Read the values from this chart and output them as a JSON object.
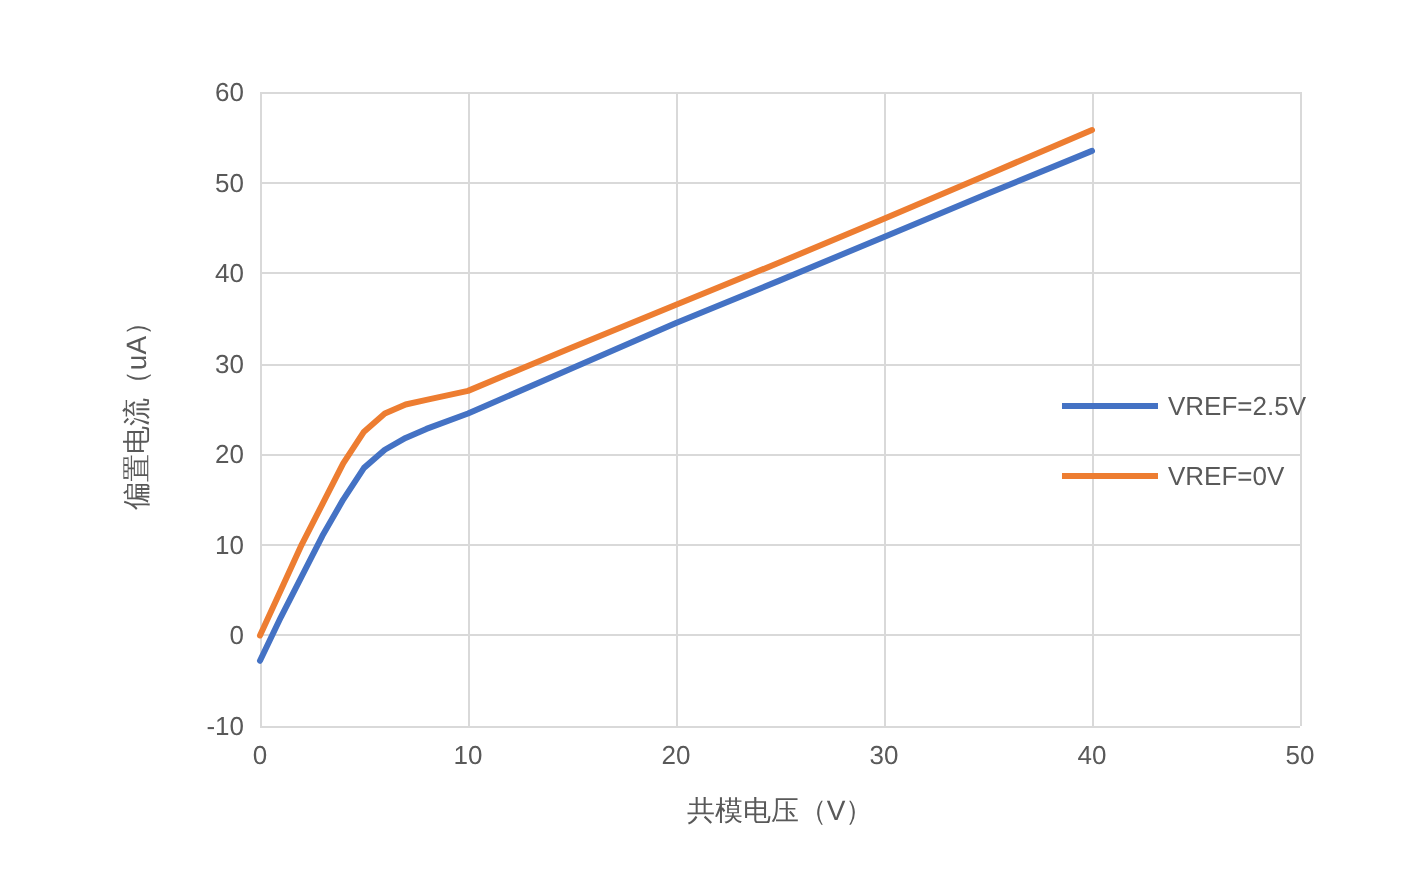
{
  "chart_data": {
    "type": "line",
    "xlabel": "共模电压（V）",
    "ylabel": "偏置电流（uA）",
    "x": [
      0,
      1,
      2,
      3,
      4,
      5,
      6,
      7,
      8,
      10,
      15,
      20,
      25,
      30,
      35,
      40
    ],
    "series": [
      {
        "name": "VREF=2.5V",
        "color": "#4472c4",
        "values": [
          -2.8,
          2,
          6.5,
          11,
          15,
          18.5,
          20.5,
          21.8,
          22.8,
          24.5,
          29.5,
          34.5,
          39.2,
          44,
          48.8,
          53.5
        ]
      },
      {
        "name": "VREF=0V",
        "color": "#ed7d31",
        "values": [
          0,
          5,
          10,
          14.5,
          19,
          22.5,
          24.5,
          25.5,
          26,
          27,
          31.8,
          36.5,
          41.2,
          46,
          50.9,
          55.8
        ]
      }
    ],
    "xlim": [
      0,
      50
    ],
    "xticks": [
      0,
      10,
      20,
      30,
      40,
      50
    ],
    "ylim": [
      -10,
      60
    ],
    "yticks": [
      -10,
      0,
      10,
      20,
      30,
      40,
      50,
      60
    ],
    "grid": true,
    "legend": "right",
    "marker": "none",
    "line_style": "solid"
  }
}
